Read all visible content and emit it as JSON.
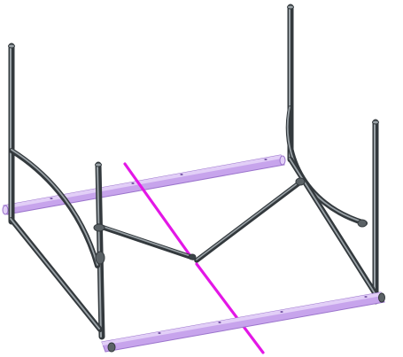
{
  "scene": {
    "subject": "cad-tubular-frame-assembly",
    "colors": {
      "background": "#ffffff",
      "tube": "#5b6266",
      "tube_highlight": "#9aa2a7",
      "tube_dark": "#33393d",
      "rail": "#c7a4ec",
      "rail_edge": "#9b74cc",
      "rail_highlight": "#e2cff7",
      "axis_line": "#e317e6",
      "hole": "#7a5aa8"
    }
  }
}
